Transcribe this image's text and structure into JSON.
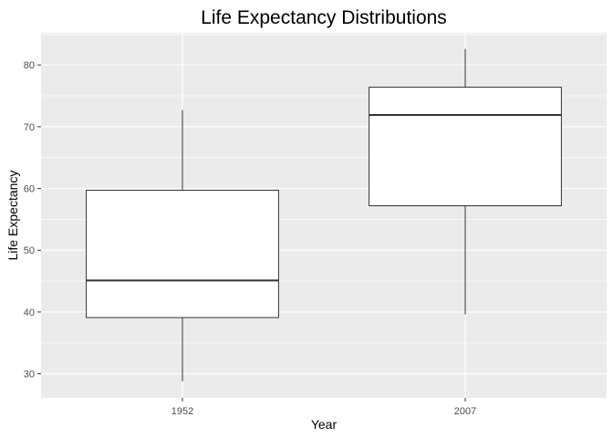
{
  "chart_data": {
    "type": "boxplot",
    "title": "Life Expectancy Distributions",
    "xlabel": "Year",
    "ylabel": "Life Expectancy",
    "categories": [
      "1952",
      "2007"
    ],
    "boxes": [
      {
        "category": "1952",
        "min": 28.8,
        "q1": 39.1,
        "median": 45.1,
        "q3": 59.7,
        "max": 72.7
      },
      {
        "category": "2007",
        "min": 39.6,
        "q1": 57.2,
        "median": 71.9,
        "q3": 76.4,
        "max": 82.6
      }
    ],
    "yticks": [
      30,
      40,
      50,
      60,
      70,
      80
    ],
    "ylim": [
      26.1,
      85.2
    ],
    "grid": true,
    "colors": {
      "panel_background": "#ebebeb",
      "grid_major": "#ffffff",
      "box_fill": "#ffffff",
      "box_stroke": "#333333",
      "tick_label": "#4d4d4d",
      "axis_title": "#000000"
    }
  }
}
